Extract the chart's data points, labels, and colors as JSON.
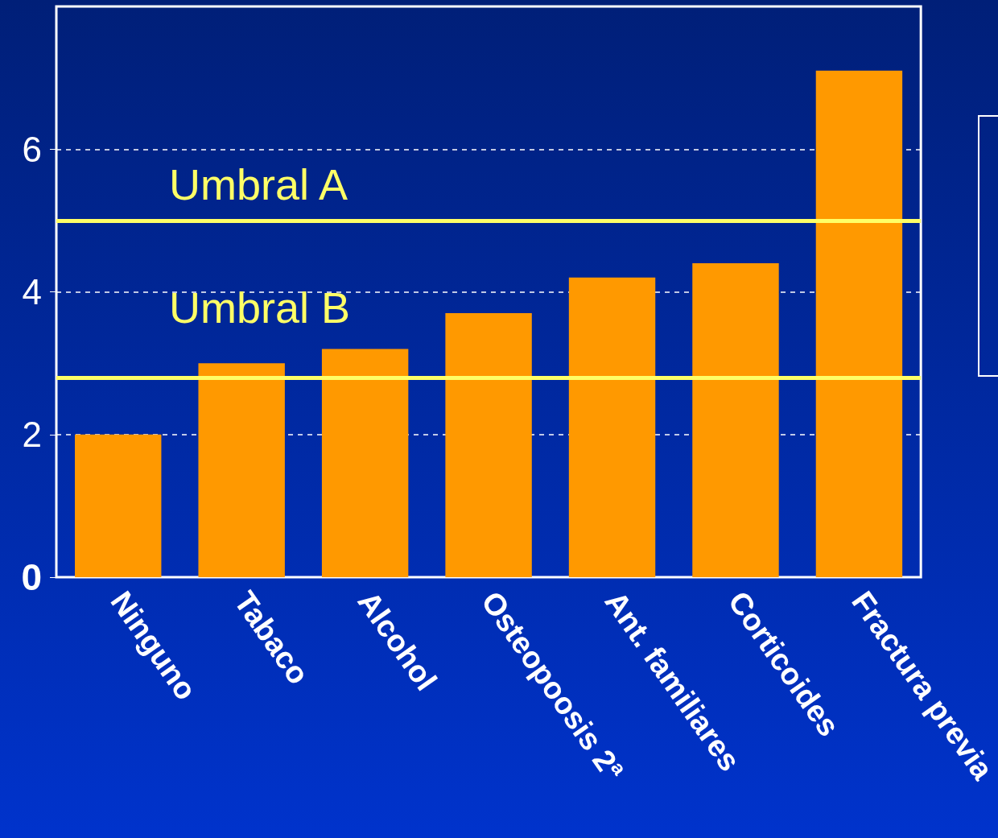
{
  "chart_data": {
    "type": "bar",
    "categories": [
      "Ninguno",
      "Tabaco",
      "Alcohol",
      "Osteopoosis 2ª",
      "Ant. familiares",
      "Corticoides",
      "Fractura previa"
    ],
    "values": [
      2.0,
      3.0,
      3.2,
      3.7,
      4.2,
      4.4,
      7.1
    ],
    "color": "#ff9900",
    "ylim": [
      0,
      8
    ],
    "yticks": [
      0,
      2,
      4,
      6
    ],
    "grid": "y",
    "ref_lines": [
      {
        "axis": "y",
        "value": 5.0,
        "label": "Umbral A",
        "color": "#ffff66"
      },
      {
        "axis": "y",
        "value": 2.8,
        "label": "Umbral B",
        "color": "#ffff66"
      }
    ]
  }
}
